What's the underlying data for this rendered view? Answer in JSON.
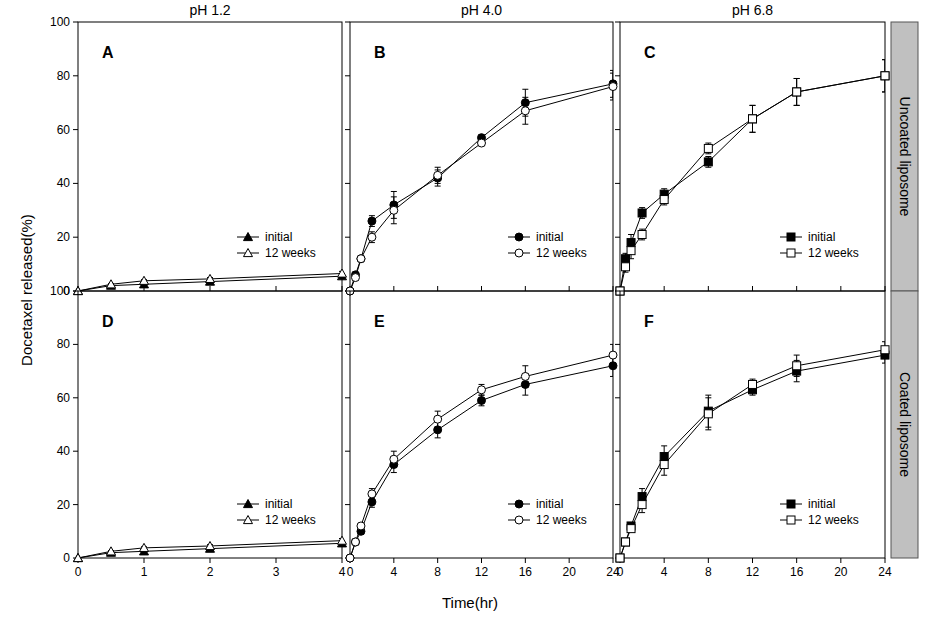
{
  "figure": {
    "x_label": "Time(hr)",
    "y_label": "Docetaxel released(%)",
    "columns": [
      "pH 1.2",
      "pH 4.0",
      "pH 6.8"
    ],
    "rows": [
      "Uncoated liposome",
      "Coated liposome"
    ]
  },
  "chart_data": [
    {
      "type": "line",
      "title": "A",
      "x": [
        0,
        0.5,
        1,
        2,
        4
      ],
      "xlim": [
        0,
        4
      ],
      "xticks": [
        0,
        1,
        2,
        3,
        4
      ],
      "ylim": [
        0,
        100
      ],
      "yticks": [
        0,
        20,
        40,
        60,
        80,
        100
      ],
      "tick_labels": "y",
      "legend": "lower right",
      "series": [
        {
          "name": "initial",
          "color": "#000000",
          "marker": "filled-triangle",
          "values": [
            0,
            2,
            2.5,
            3.5,
            5.5
          ],
          "errors": [
            0,
            0.3,
            0.4,
            0.5,
            0.8
          ]
        },
        {
          "name": "12 weeks",
          "color": "#000000",
          "marker": "open-triangle",
          "values": [
            0,
            2.5,
            3.8,
            4.5,
            6.5
          ],
          "errors": [
            0,
            0.3,
            0.4,
            0.5,
            0.8
          ]
        }
      ]
    },
    {
      "type": "line",
      "title": "B",
      "x": [
        0,
        0.5,
        1,
        2,
        4,
        8,
        12,
        16,
        24
      ],
      "xlim": [
        0,
        24
      ],
      "xticks": [
        0,
        4,
        8,
        12,
        16,
        20,
        24
      ],
      "ylim": [
        0,
        100
      ],
      "yticks": [
        0,
        20,
        40,
        60,
        80,
        100
      ],
      "tick_labels": false,
      "legend": "lower right",
      "series": [
        {
          "name": "initial",
          "color": "#000000",
          "marker": "filled-circle",
          "values": [
            0,
            6,
            12,
            26,
            32,
            42,
            57,
            70,
            77
          ],
          "errors": [
            0,
            1,
            1,
            2,
            5,
            3,
            1,
            5,
            5
          ]
        },
        {
          "name": "12 weeks",
          "color": "#000000",
          "marker": "open-circle",
          "values": [
            0,
            5,
            12,
            20,
            30,
            43,
            55,
            67,
            76
          ],
          "errors": [
            0,
            1,
            1,
            2,
            5,
            3,
            1,
            5,
            5
          ]
        }
      ]
    },
    {
      "type": "line",
      "title": "C",
      "x": [
        0,
        0.5,
        1,
        2,
        4,
        8,
        12,
        16,
        24
      ],
      "xlim": [
        0,
        24
      ],
      "xticks": [
        0,
        4,
        8,
        12,
        16,
        20,
        24
      ],
      "ylim": [
        0,
        100
      ],
      "yticks": [
        0,
        20,
        40,
        60,
        80,
        100
      ],
      "tick_labels": false,
      "legend": "lower right",
      "series": [
        {
          "name": "initial",
          "color": "#000000",
          "marker": "filled-square",
          "values": [
            0,
            12,
            18,
            29,
            36,
            48,
            64,
            74,
            80
          ],
          "errors": [
            0,
            2,
            3,
            2,
            2,
            2,
            5,
            5,
            6
          ]
        },
        {
          "name": "12 weeks",
          "color": "#000000",
          "marker": "open-square",
          "values": [
            0,
            9,
            15,
            21,
            34,
            53,
            64,
            74,
            80
          ],
          "errors": [
            0,
            2,
            3,
            2,
            2,
            2,
            5,
            5,
            6
          ]
        }
      ]
    },
    {
      "type": "line",
      "title": "D",
      "x": [
        0,
        0.5,
        1,
        2,
        4
      ],
      "xlim": [
        0,
        4
      ],
      "xticks": [
        0,
        1,
        2,
        3,
        4
      ],
      "ylim": [
        0,
        100
      ],
      "yticks": [
        0,
        20,
        40,
        60,
        80,
        100
      ],
      "legend": "lower right",
      "series": [
        {
          "name": "initial",
          "color": "#000000",
          "marker": "filled-triangle",
          "values": [
            0,
            2,
            2.5,
            3.5,
            5.5
          ],
          "errors": [
            0,
            0.3,
            0.4,
            0.5,
            0.8
          ]
        },
        {
          "name": "12 weeks",
          "color": "#000000",
          "marker": "open-triangle",
          "values": [
            0,
            2.5,
            3.8,
            4.5,
            6.5
          ],
          "errors": [
            0,
            0.3,
            0.4,
            0.5,
            0.8
          ]
        }
      ]
    },
    {
      "type": "line",
      "title": "E",
      "x": [
        0,
        0.5,
        1,
        2,
        4,
        8,
        12,
        16,
        24
      ],
      "xlim": [
        0,
        24
      ],
      "xticks": [
        0,
        4,
        8,
        12,
        16,
        20,
        24
      ],
      "ylim": [
        0,
        100
      ],
      "yticks": [
        0,
        20,
        40,
        60,
        80,
        100
      ],
      "tick_labels": "x",
      "legend": "lower right",
      "series": [
        {
          "name": "initial",
          "color": "#000000",
          "marker": "filled-circle",
          "values": [
            0,
            6,
            10,
            21,
            35,
            48,
            59,
            65,
            72
          ],
          "errors": [
            0,
            1,
            1,
            2,
            3,
            3,
            2,
            4,
            4
          ]
        },
        {
          "name": "12 weeks",
          "color": "#000000",
          "marker": "open-circle",
          "values": [
            0,
            6,
            12,
            24,
            37,
            52,
            63,
            68,
            76
          ],
          "errors": [
            0,
            1,
            1,
            2,
            3,
            3,
            2,
            4,
            4
          ]
        }
      ]
    },
    {
      "type": "line",
      "title": "F",
      "x": [
        0,
        0.5,
        1,
        2,
        4,
        8,
        12,
        16,
        24
      ],
      "xlim": [
        0,
        24
      ],
      "xticks": [
        0,
        4,
        8,
        12,
        16,
        20,
        24
      ],
      "ylim": [
        0,
        100
      ],
      "yticks": [
        0,
        20,
        40,
        60,
        80,
        100
      ],
      "tick_labels": "x",
      "legend": "lower right",
      "series": [
        {
          "name": "initial",
          "color": "#000000",
          "marker": "filled-square",
          "values": [
            0,
            6,
            12,
            23,
            38,
            55,
            63,
            70,
            76
          ],
          "errors": [
            0,
            1,
            1,
            3,
            4,
            6,
            2,
            4,
            3
          ]
        },
        {
          "name": "12 weeks",
          "color": "#000000",
          "marker": "open-square",
          "values": [
            0,
            6,
            11,
            20,
            35,
            54,
            65,
            72,
            78
          ],
          "errors": [
            0,
            1,
            1,
            3,
            4,
            6,
            2,
            4,
            3
          ]
        }
      ]
    }
  ]
}
